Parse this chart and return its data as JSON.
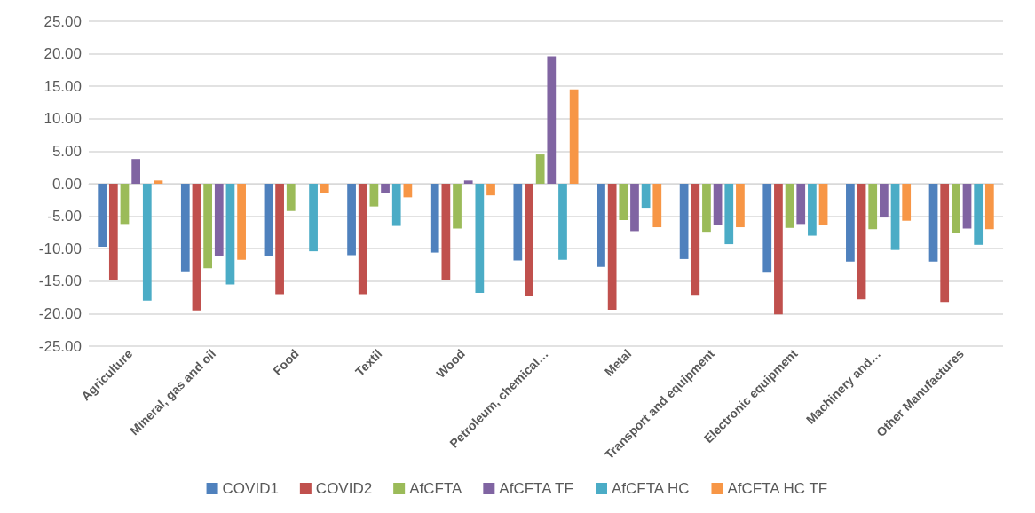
{
  "chart_data": {
    "type": "bar",
    "categories": [
      "Agriculture",
      "Mineral, gas and oil",
      "Food",
      "Textil",
      "Wood",
      "Petroleum, chemical…",
      "Metal",
      "Transport and equipment",
      "Electronic equipment",
      "Machinery and…",
      "Other Manufactures"
    ],
    "series": [
      {
        "name": "COVID1",
        "color": "#4f81bd",
        "values": [
          -9.7,
          -13.5,
          -11.1,
          -11.0,
          -10.6,
          -11.8,
          -12.8,
          -11.6,
          -13.7,
          -12.0,
          -12.0
        ]
      },
      {
        "name": "COVID2",
        "color": "#c0504d",
        "values": [
          -14.9,
          -19.5,
          -17.0,
          -17.0,
          -14.9,
          -17.3,
          -19.4,
          -17.1,
          -20.1,
          -17.8,
          -18.2
        ]
      },
      {
        "name": "AfCFTA",
        "color": "#9bbb59",
        "values": [
          -6.2,
          -13.0,
          -4.2,
          -3.5,
          -6.9,
          4.5,
          -5.6,
          -7.4,
          -6.8,
          -7.0,
          -7.6
        ]
      },
      {
        "name": "AfCFTA TF",
        "color": "#8064a2",
        "values": [
          3.8,
          -11.1,
          0,
          -1.5,
          0.5,
          19.6,
          -7.3,
          -6.4,
          -6.2,
          -5.2,
          -6.9
        ]
      },
      {
        "name": "AfCFTA HC",
        "color": "#4bacc6",
        "values": [
          -18.0,
          -15.5,
          -10.4,
          -6.5,
          -16.8,
          -11.7,
          -3.7,
          -9.3,
          -8.0,
          -10.2,
          -9.4
        ]
      },
      {
        "name": "AfCFTA HC TF",
        "color": "#f79646",
        "values": [
          0.5,
          -11.7,
          -1.4,
          -2.1,
          -1.8,
          14.5,
          -6.7,
          -6.7,
          -6.3,
          -5.7,
          -7.0
        ]
      }
    ],
    "ylim": [
      -25,
      25
    ],
    "yticks": [
      {
        "value": -25,
        "label": "-25.00"
      },
      {
        "value": -20,
        "label": "-20.00"
      },
      {
        "value": -15,
        "label": "-15.00"
      },
      {
        "value": -10,
        "label": "-10.00"
      },
      {
        "value": -5,
        "label": "-5.00"
      },
      {
        "value": 0,
        "label": "0.00"
      },
      {
        "value": 5,
        "label": "5.00"
      },
      {
        "value": 10,
        "label": "10.00"
      },
      {
        "value": 15,
        "label": "15.00"
      },
      {
        "value": 20,
        "label": "20.00"
      },
      {
        "value": 25,
        "label": "25.00"
      }
    ],
    "grid": "y",
    "legend": "bottom"
  }
}
